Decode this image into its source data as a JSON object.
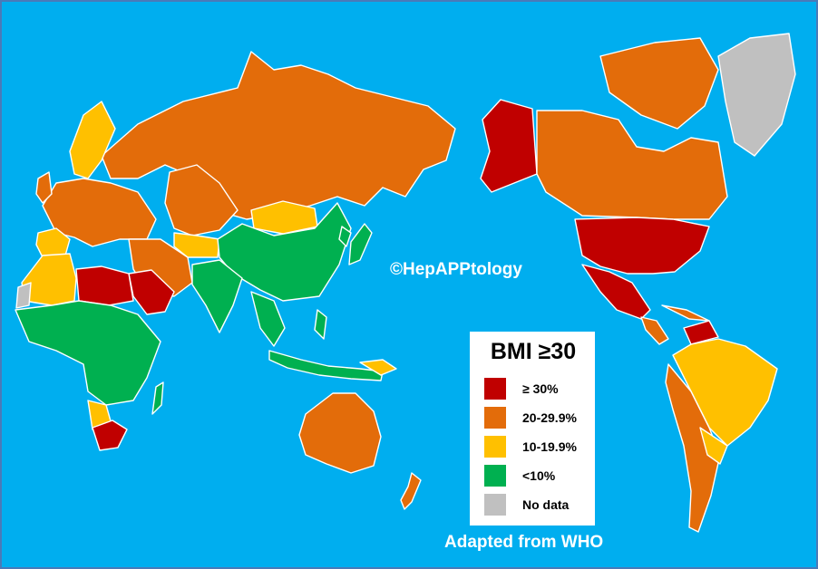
{
  "credit_text": "Adapted from WHO",
  "watermark_text": "©HepAPPtology",
  "colors": {
    "ocean": "#00aeef",
    "high": "#c00000",
    "upper": "#e36c0a",
    "middle": "#ffc000",
    "low": "#00b050",
    "nodata": "#c0c0c0"
  },
  "legend": {
    "title": "BMI ≥30",
    "items": [
      {
        "label": "≥ 30%",
        "color": "#c00000"
      },
      {
        "label": "20-29.9%",
        "color": "#e36c0a"
      },
      {
        "label": "10-19.9%",
        "color": "#ffc000"
      },
      {
        "label": "<10%",
        "color": "#00b050"
      },
      {
        "label": "No data",
        "color": "#c0c0c0"
      }
    ]
  }
}
